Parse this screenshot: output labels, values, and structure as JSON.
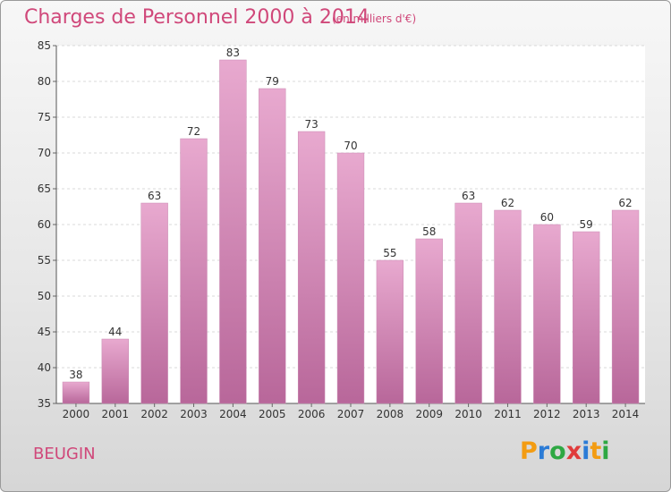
{
  "header": {
    "title": "Charges de Personnel 2000 à 2014",
    "subtitle": "(en milliers d'€)"
  },
  "footer": {
    "commune": "BEUGIN",
    "logo": {
      "letters": [
        "P",
        "r",
        "o",
        "x",
        "i",
        "t",
        "i"
      ],
      "colors": [
        "#f39c12",
        "#2b7bd6",
        "#2ea843",
        "#e03b3b",
        "#2b7bd6",
        "#f39c12",
        "#2ea843"
      ]
    }
  },
  "colors": {
    "bar_top": "#e8a9cf",
    "bar_bottom": "#b8679a",
    "text_accent": "#d0487a"
  },
  "chart_data": {
    "type": "bar",
    "categories": [
      "2000",
      "2001",
      "2002",
      "2003",
      "2004",
      "2005",
      "2006",
      "2007",
      "2008",
      "2009",
      "2010",
      "2011",
      "2012",
      "2013",
      "2014"
    ],
    "values": [
      38,
      44,
      63,
      72,
      83,
      79,
      73,
      70,
      55,
      58,
      63,
      62,
      60,
      59,
      62
    ],
    "title": "Charges de Personnel 2000 à 2014",
    "xlabel": "",
    "ylabel": "",
    "ylim": [
      35,
      85
    ],
    "yticks": [
      35,
      40,
      45,
      50,
      55,
      60,
      65,
      70,
      75,
      80,
      85
    ],
    "grid": true,
    "data_labels": true
  }
}
